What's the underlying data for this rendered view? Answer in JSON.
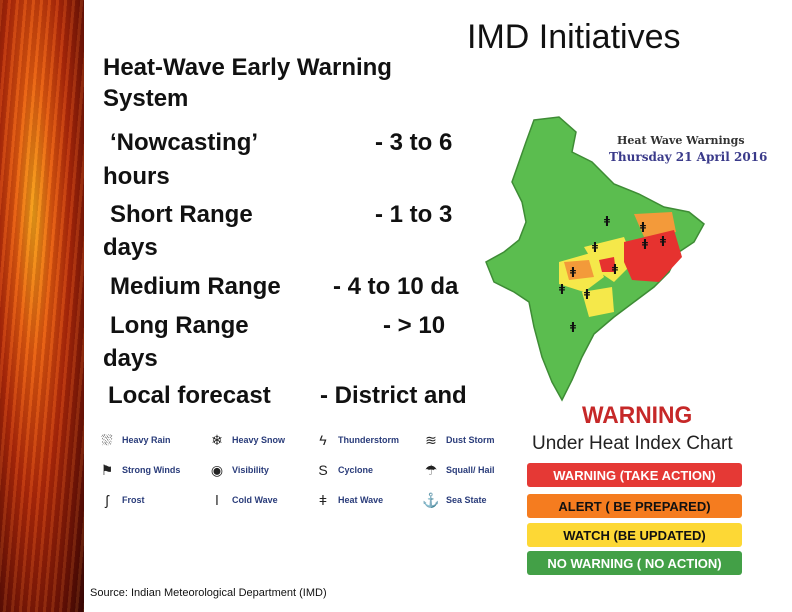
{
  "slide": {
    "title": "IMD Initiatives",
    "subtitle": "Heat-Wave Early Warning System",
    "source": "Source: Indian Meteorological Department (IMD)"
  },
  "forecasts": [
    {
      "label": "‘Nowcasting’",
      "value": "- 3 to 6",
      "wrap": "hours"
    },
    {
      "label": "Short Range",
      "value": "- 1 to 3",
      "wrap": "days"
    },
    {
      "label": "Medium Range",
      "value": "- 4 to 10 da",
      "wrap": ""
    },
    {
      "label": "Long Range",
      "value": "- > 10",
      "wrap": "days"
    },
    {
      "label": "Local forecast",
      "value": "- District and",
      "wrap": ""
    }
  ],
  "map": {
    "title": "Heat Wave Warnings",
    "date": "Thursday 21 April 2016"
  },
  "legend": [
    {
      "label": "Heavy Rain",
      "icon": "heavy-rain-icon",
      "glyph": "⛆"
    },
    {
      "label": "Heavy Snow",
      "icon": "heavy-snow-icon",
      "glyph": "❄"
    },
    {
      "label": "Dust Storm",
      "icon": "dust-storm-icon",
      "glyph": "≋"
    },
    {
      "label": "Strong Winds",
      "icon": "strong-winds-icon",
      "glyph": "⚑"
    },
    {
      "label": "Visibility",
      "icon": "visibility-icon",
      "glyph": "◉"
    },
    {
      "label": "Squall/ Hail",
      "icon": "squall-hail-icon",
      "glyph": "☂"
    },
    {
      "label": "Thunderstorm",
      "icon": "thunderstorm-icon",
      "glyph": "ϟ"
    },
    {
      "label": "Cyclone",
      "icon": "cyclone-icon",
      "glyph": "S"
    },
    {
      "label": "Sea State",
      "icon": "sea-state-icon",
      "glyph": "⚓"
    },
    {
      "label": "Frost",
      "icon": "frost-icon",
      "glyph": "ʃ"
    },
    {
      "label": "Cold Wave",
      "icon": "cold-wave-icon",
      "glyph": "ǀ"
    },
    {
      "label": "Heat Wave",
      "icon": "heat-wave-icon",
      "glyph": "ǂ"
    }
  ],
  "warning_chart": {
    "title": "WARNING",
    "subtitle": "Under Heat Index Chart",
    "levels": [
      {
        "label": "WARNING (TAKE ACTION)",
        "color": "#e53935",
        "text_color": "#ffffff"
      },
      {
        "label": "ALERT ( BE PREPARED)",
        "color": "#f57c1f",
        "text_color": "#111111"
      },
      {
        "label": "WATCH (BE UPDATED)",
        "color": "#fdd835",
        "text_color": "#111111"
      },
      {
        "label": "NO WARNING ( NO ACTION)",
        "color": "#43a047",
        "text_color": "#ffffff"
      }
    ]
  }
}
